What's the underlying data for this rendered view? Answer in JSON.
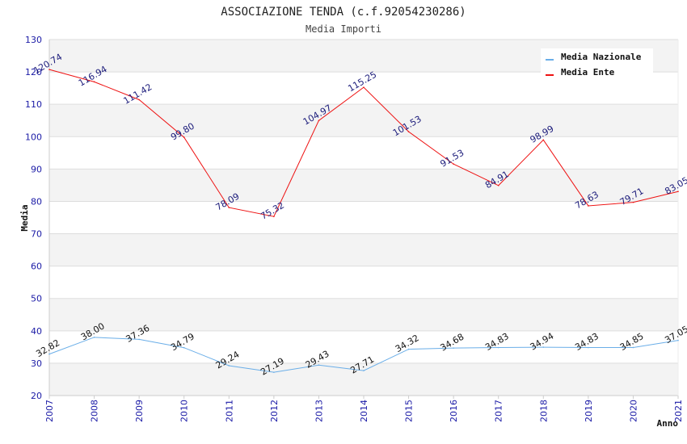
{
  "chart_data": {
    "type": "line",
    "title": "ASSOCIAZIONE TENDA (c.f.92054230286)",
    "subtitle": "Media Importi",
    "xlabel": "Anno",
    "ylabel": "Media",
    "ylim": [
      20,
      130
    ],
    "yticks": [
      20,
      30,
      40,
      50,
      60,
      70,
      80,
      90,
      100,
      110,
      120,
      130
    ],
    "grid": true,
    "legend_position": "top-right",
    "categories": [
      "2007",
      "2008",
      "2009",
      "2010",
      "2011",
      "2012",
      "2013",
      "2014",
      "2015",
      "2016",
      "2017",
      "2018",
      "2019",
      "2020",
      "2021"
    ],
    "series": [
      {
        "name": "Media Nazionale",
        "color": "#6aaee8",
        "values": [
          32.82,
          38.0,
          37.36,
          34.79,
          29.24,
          27.19,
          29.43,
          27.71,
          34.32,
          34.68,
          34.83,
          34.94,
          34.83,
          34.85,
          37.05
        ],
        "labels": [
          "32.82",
          "38.00",
          "37.36",
          "34.79",
          "29.24",
          "27.19",
          "29.43",
          "27.71",
          "34.32",
          "34.68",
          "34.83",
          "34.94",
          "34.83",
          "34.85",
          "37.05"
        ]
      },
      {
        "name": "Media Ente",
        "color": "#ee1111",
        "values": [
          120.74,
          116.94,
          111.42,
          99.8,
          78.09,
          75.32,
          104.97,
          115.25,
          101.53,
          91.53,
          84.91,
          98.99,
          78.63,
          79.71,
          83.05
        ],
        "labels": [
          "120.74",
          "116.94",
          "111.42",
          "99.80",
          "78.09",
          "75.32",
          "104.97",
          "115.25",
          "101.53",
          "91.53",
          "84.91",
          "98.99",
          "78.63",
          "79.71",
          "83.05"
        ]
      }
    ]
  }
}
